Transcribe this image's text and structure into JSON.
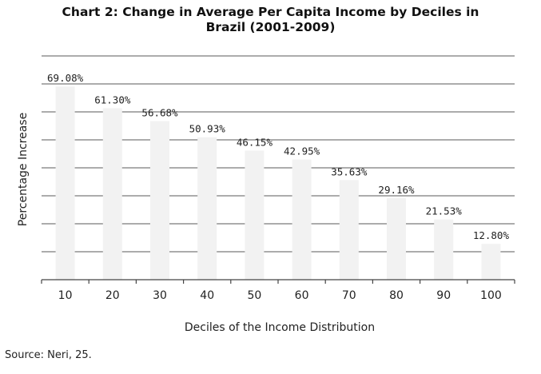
{
  "chart_data": {
    "type": "bar",
    "title_lines": [
      "Chart 2: Change in Average Per Capita Income by Deciles in",
      "Brazil (2001-2009)"
    ],
    "xlabel": "Deciles of the Income Distribution",
    "ylabel": "Percentage Increase",
    "categories": [
      "10",
      "20",
      "30",
      "40",
      "50",
      "60",
      "70",
      "80",
      "90",
      "100"
    ],
    "values": [
      69.08,
      61.3,
      56.68,
      50.93,
      46.15,
      42.95,
      35.63,
      29.16,
      21.53,
      12.8
    ],
    "value_labels": [
      "69.08%",
      "61.30%",
      "56.68%",
      "50.93%",
      "46.15%",
      "42.95%",
      "35.63%",
      "29.16%",
      "21.53%",
      "12.80%"
    ],
    "ylim": [
      0,
      80
    ],
    "grid": true,
    "bar_color": "#f2f2f2",
    "grid_color": "#7a7a7a"
  },
  "source": "Source: Neri, 25."
}
